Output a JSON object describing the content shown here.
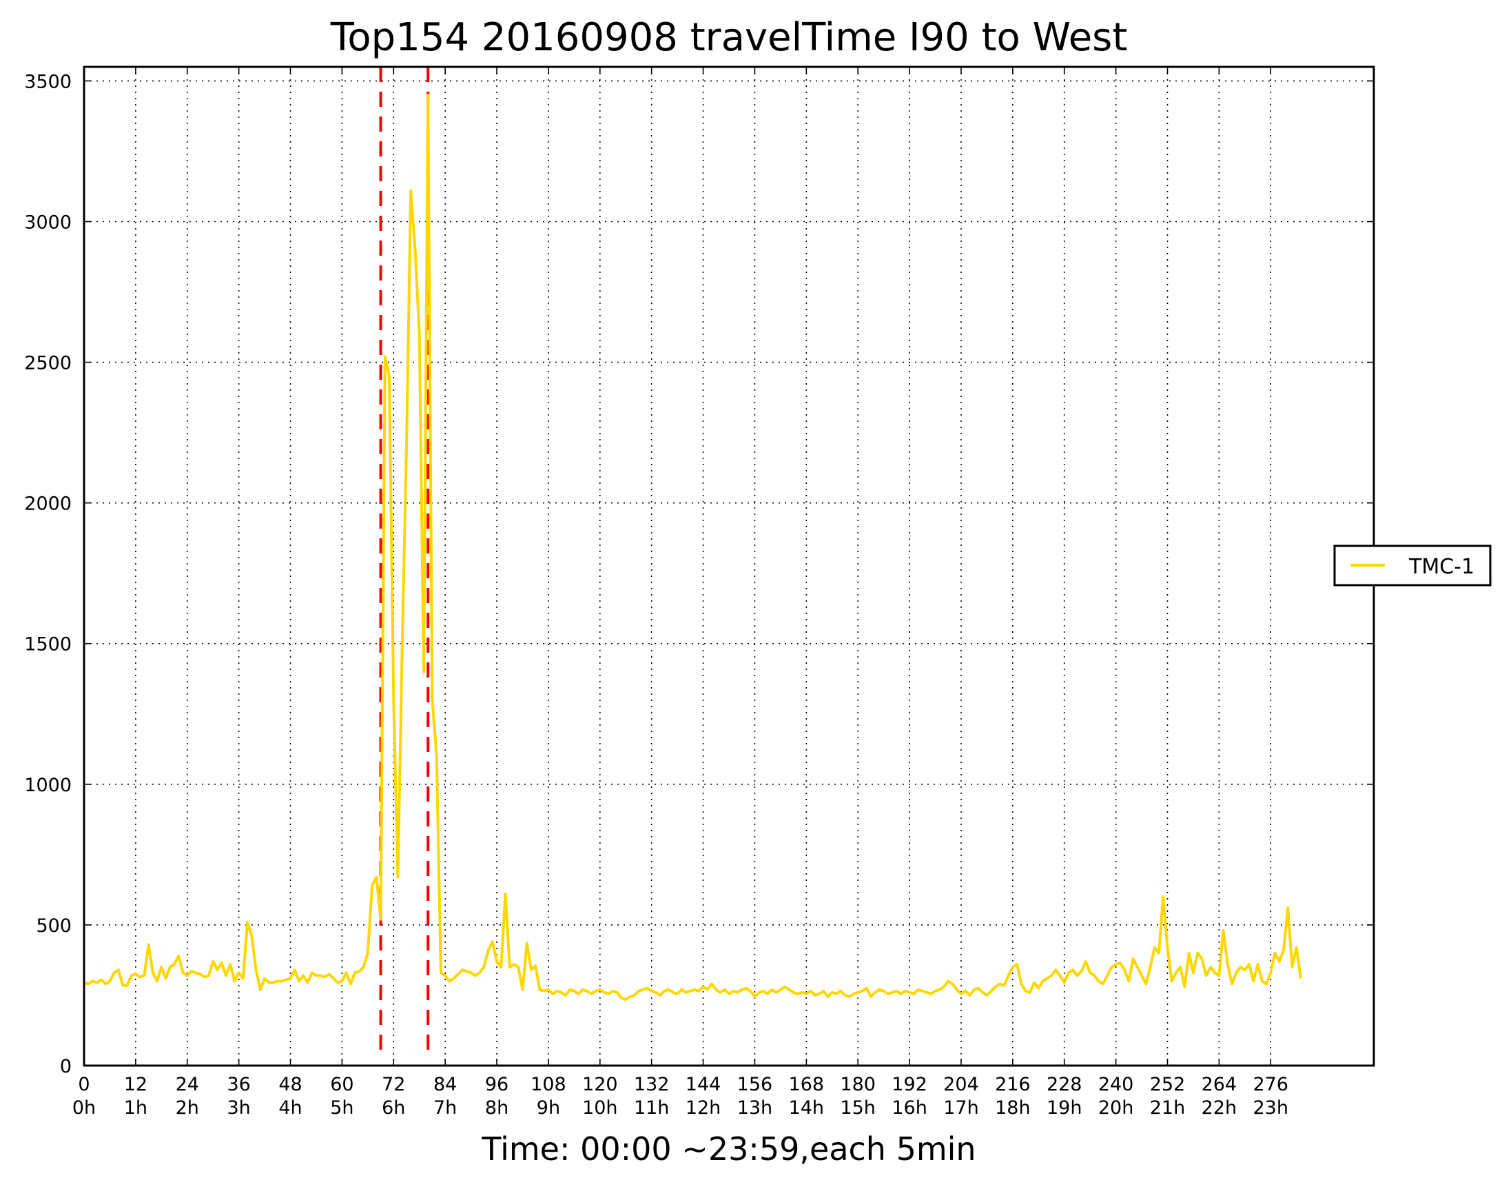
{
  "chart_data": {
    "type": "line",
    "title": "Top154 20160908 travelTime I90 to West",
    "xlabel": "Time: 00:00 ~23:59,each 5min",
    "ylabel": "",
    "xlim": [
      0,
      300
    ],
    "ylim": [
      0,
      3550
    ],
    "grid": true,
    "legend_position": "right",
    "x_ticks": [
      0,
      12,
      24,
      36,
      48,
      60,
      72,
      84,
      96,
      108,
      120,
      132,
      144,
      156,
      168,
      180,
      192,
      204,
      216,
      228,
      240,
      252,
      264,
      276
    ],
    "x_tick_hours": [
      "0h",
      "1h",
      "2h",
      "3h",
      "4h",
      "5h",
      "6h",
      "7h",
      "8h",
      "9h",
      "10h",
      "11h",
      "12h",
      "13h",
      "14h",
      "15h",
      "16h",
      "17h",
      "18h",
      "19h",
      "20h",
      "21h",
      "22h",
      "23h"
    ],
    "y_ticks": [
      0,
      500,
      1000,
      1500,
      2000,
      2500,
      3000,
      3500
    ],
    "markers": {
      "x": [
        69,
        80
      ],
      "color": "#ff0000",
      "style": "dashed"
    },
    "series": [
      {
        "name": "TMC-1",
        "color": "#ffd700",
        "values": [
          295,
          290,
          300,
          295,
          305,
          290,
          300,
          330,
          340,
          285,
          285,
          320,
          325,
          315,
          320,
          430,
          330,
          300,
          350,
          310,
          350,
          360,
          390,
          330,
          320,
          335,
          330,
          325,
          315,
          320,
          370,
          340,
          365,
          320,
          360,
          300,
          330,
          310,
          510,
          460,
          340,
          270,
          310,
          295,
          295,
          300,
          300,
          305,
          310,
          340,
          300,
          320,
          295,
          330,
          320,
          320,
          315,
          325,
          310,
          295,
          300,
          330,
          290,
          330,
          335,
          350,
          400,
          640,
          670,
          520,
          2520,
          2450,
          1300,
          670,
          1500,
          2200,
          3110,
          2900,
          2600,
          1400,
          3450,
          1300,
          1100,
          330,
          320,
          300,
          310,
          325,
          340,
          335,
          330,
          320,
          330,
          350,
          410,
          440,
          370,
          350,
          610,
          350,
          360,
          350,
          270,
          435,
          340,
          355,
          270,
          265,
          270,
          255,
          265,
          260,
          250,
          270,
          265,
          255,
          270,
          265,
          255,
          265,
          270,
          260,
          255,
          265,
          260,
          240,
          235,
          245,
          250,
          265,
          270,
          275,
          265,
          260,
          250,
          265,
          270,
          260,
          255,
          270,
          260,
          265,
          270,
          265,
          280,
          270,
          290,
          270,
          260,
          270,
          255,
          265,
          260,
          270,
          275,
          265,
          245,
          260,
          265,
          255,
          270,
          260,
          270,
          280,
          270,
          260,
          255,
          260,
          255,
          265,
          250,
          255,
          265,
          245,
          260,
          255,
          265,
          250,
          245,
          255,
          260,
          265,
          275,
          245,
          260,
          270,
          265,
          255,
          260,
          265,
          255,
          265,
          260,
          255,
          270,
          265,
          260,
          255,
          265,
          270,
          280,
          300,
          290,
          270,
          255,
          265,
          250,
          270,
          275,
          260,
          250,
          265,
          280,
          290,
          285,
          320,
          350,
          360,
          290,
          265,
          260,
          295,
          275,
          300,
          310,
          320,
          340,
          320,
          295,
          330,
          340,
          320,
          335,
          370,
          330,
          320,
          300,
          290,
          320,
          350,
          360,
          365,
          340,
          300,
          380,
          350,
          320,
          290,
          350,
          420,
          400,
          600,
          420,
          300,
          330,
          350,
          280,
          400,
          330,
          400,
          380,
          320,
          350,
          330,
          320,
          480,
          360,
          290,
          330,
          350,
          340,
          360,
          300,
          360,
          300,
          290,
          330,
          400,
          370,
          410,
          560,
          350,
          420,
          310
        ]
      }
    ]
  }
}
